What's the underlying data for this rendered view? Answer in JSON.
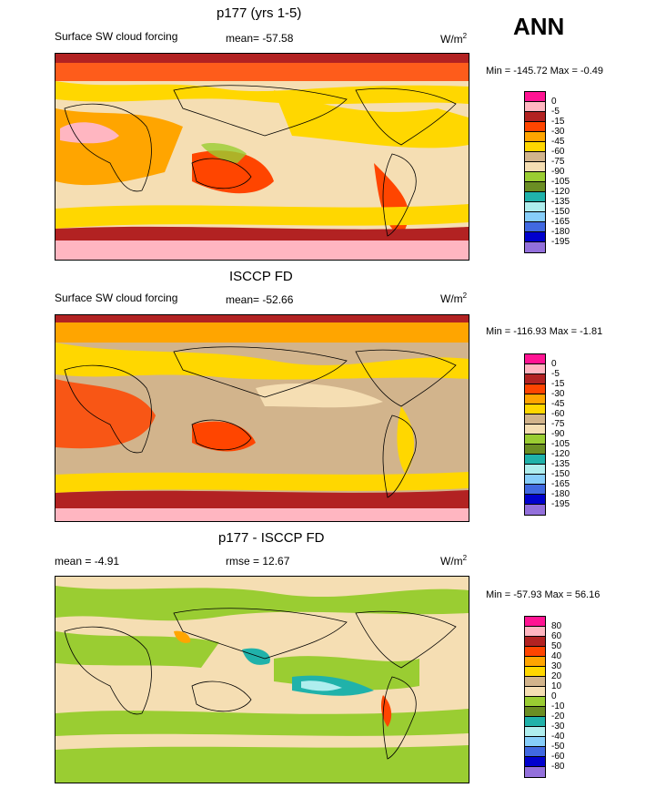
{
  "season": "ANN",
  "panels": [
    {
      "title": "p177 (yrs 1-5)",
      "left_label": "Surface SW cloud forcing",
      "mean_label": "mean= -57.58",
      "units_main": "W/m",
      "units_exp": "2",
      "minmax": "Min = -145.72 Max =  -0.49",
      "levels": [
        "0",
        "-5",
        "-15",
        "-30",
        "-45",
        "-60",
        "-75",
        "-90",
        "-105",
        "-120",
        "-135",
        "-150",
        "-165",
        "-180",
        "-195"
      ],
      "colors": [
        "#ff1493",
        "#ffb6c1",
        "#b22222",
        "#ff4500",
        "#ffa500",
        "#ffd700",
        "#d2b48c",
        "#f5deb3",
        "#9acd32",
        "#6b8e23",
        "#20b2aa",
        "#afeeee",
        "#87cefa",
        "#4169e1",
        "#0000cd",
        "#9370db"
      ]
    },
    {
      "title": "ISCCP FD",
      "left_label": "Surface SW cloud forcing",
      "mean_label": "mean= -52.66",
      "units_main": "W/m",
      "units_exp": "2",
      "minmax": "Min = -116.93 Max =  -1.81",
      "levels": [
        "0",
        "-5",
        "-15",
        "-30",
        "-45",
        "-60",
        "-75",
        "-90",
        "-105",
        "-120",
        "-135",
        "-150",
        "-165",
        "-180",
        "-195"
      ],
      "colors": [
        "#ff1493",
        "#ffb6c1",
        "#b22222",
        "#ff4500",
        "#ffa500",
        "#ffd700",
        "#d2b48c",
        "#f5deb3",
        "#9acd32",
        "#6b8e23",
        "#20b2aa",
        "#afeeee",
        "#87cefa",
        "#4169e1",
        "#0000cd",
        "#9370db"
      ]
    },
    {
      "title": "p177 - ISCCP FD",
      "left_label": "mean =  -4.91",
      "mean_label": "rmse =  12.67",
      "units_main": "W/m",
      "units_exp": "2",
      "minmax": "Min = -57.93 Max =  56.16",
      "levels": [
        "80",
        "60",
        "50",
        "40",
        "30",
        "20",
        "10",
        "0",
        "-10",
        "-20",
        "-30",
        "-40",
        "-50",
        "-60",
        "-80"
      ],
      "colors": [
        "#ff1493",
        "#ffb6c1",
        "#b22222",
        "#ff4500",
        "#ffa500",
        "#ffd700",
        "#d2b48c",
        "#f5deb3",
        "#9acd32",
        "#6b8e23",
        "#20b2aa",
        "#afeeee",
        "#87cefa",
        "#4169e1",
        "#0000cd",
        "#9370db"
      ]
    }
  ]
}
